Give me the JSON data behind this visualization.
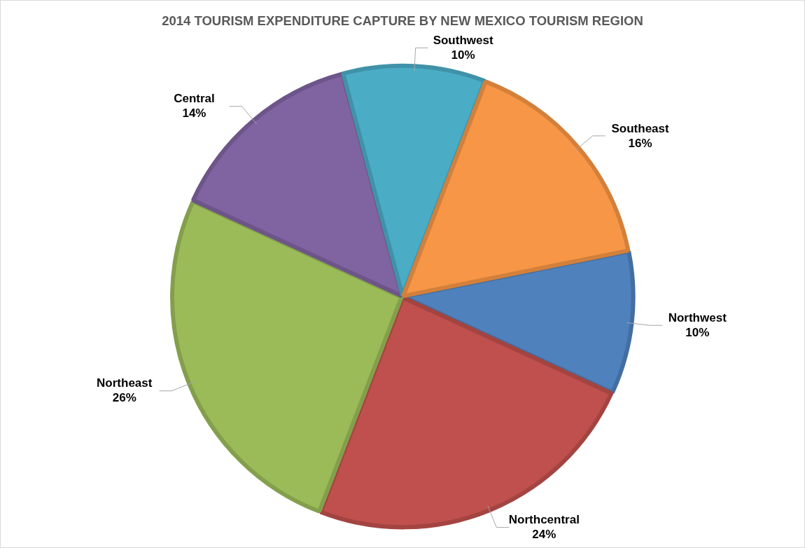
{
  "chart_data": {
    "type": "pie",
    "title": "2014 TOURISM EXPENDITURE CAPTURE BY NEW MEXICO TOURISM REGION",
    "categories": [
      "Northwest",
      "Northcentral",
      "Northeast",
      "Central",
      "Southwest",
      "Southeast"
    ],
    "values": [
      10,
      24,
      26,
      14,
      10,
      16
    ],
    "value_labels": [
      "10%",
      "24%",
      "26%",
      "14%",
      "10%",
      "16%"
    ],
    "colors": [
      "#4f81bd",
      "#c0504d",
      "#9bbb59",
      "#8064a2",
      "#4bacc6",
      "#f79646"
    ],
    "legend": false
  }
}
